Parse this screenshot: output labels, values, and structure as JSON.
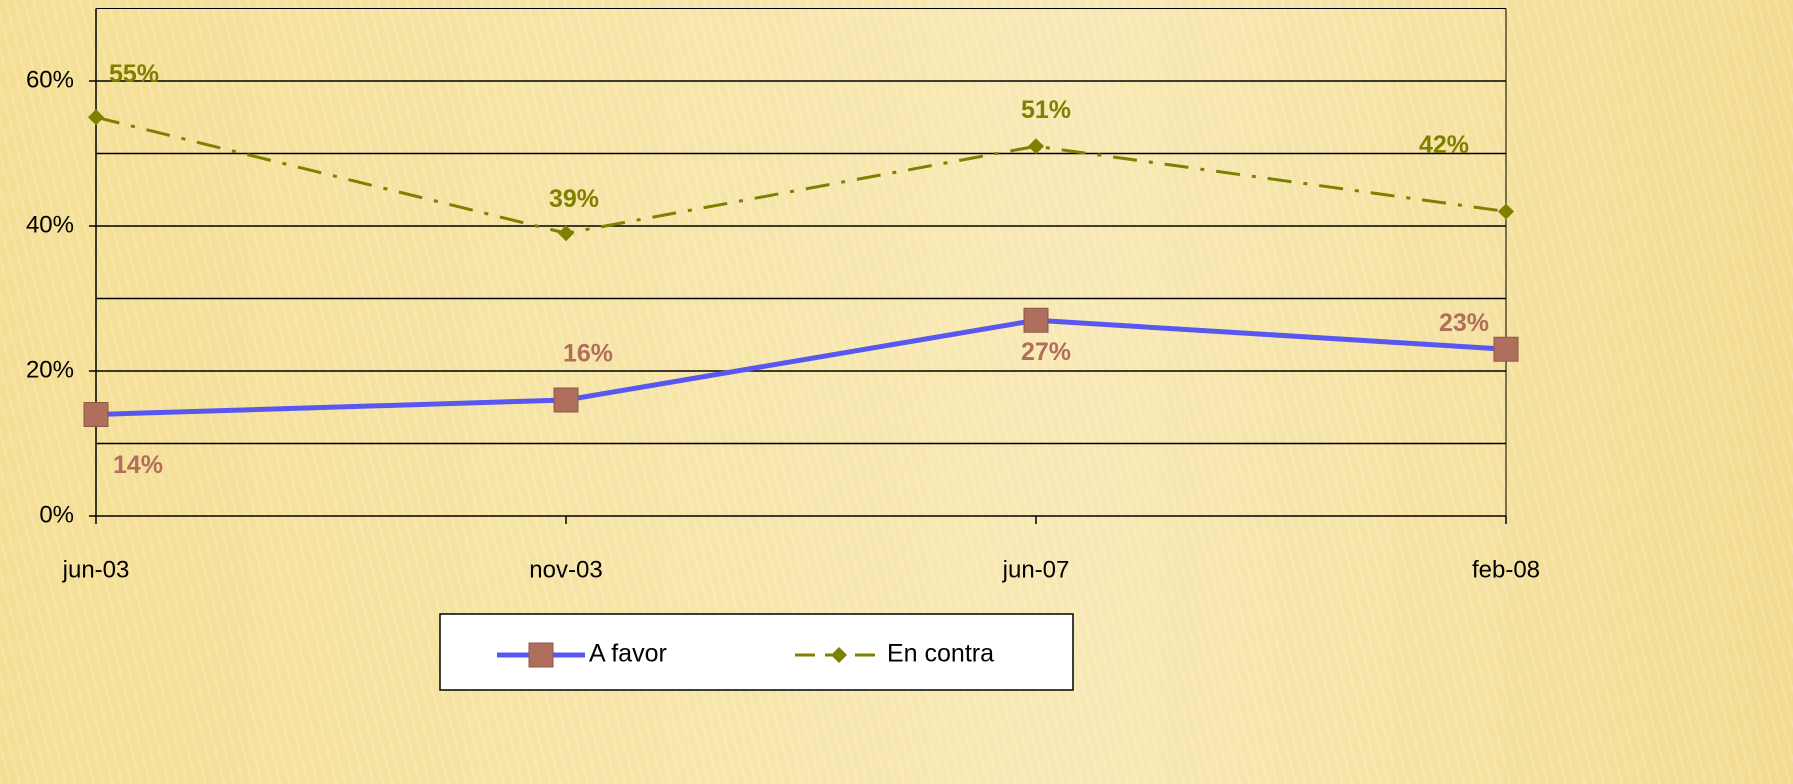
{
  "chart_data": {
    "type": "line",
    "categories": [
      "jun-03",
      "nov-03",
      "jun-07",
      "feb-08"
    ],
    "series": [
      {
        "name": "A favor",
        "color": "#5858f0",
        "marker_color": "#b06e5c",
        "line_style": "solid",
        "marker": "square",
        "values": [
          14,
          16,
          27,
          23
        ],
        "value_labels": [
          "14%",
          "16%",
          "27%",
          "23%"
        ]
      },
      {
        "name": "En contra",
        "color": "#7f7f00",
        "marker_color": "#7f7f00",
        "line_style": "dashdot",
        "marker": "diamond",
        "values": [
          55,
          39,
          51,
          42
        ],
        "value_labels": [
          "55%",
          "39%",
          "51%",
          "42%"
        ]
      }
    ],
    "ylim": [
      0,
      70
    ],
    "yticks": [
      {
        "value": 0,
        "label": "0%"
      },
      {
        "value": 20,
        "label": "20%"
      },
      {
        "value": 40,
        "label": "40%"
      },
      {
        "value": 60,
        "label": "60%"
      }
    ],
    "ygrid": [
      10,
      20,
      30,
      40,
      50,
      60
    ],
    "grid": true,
    "legend": "bottom"
  }
}
